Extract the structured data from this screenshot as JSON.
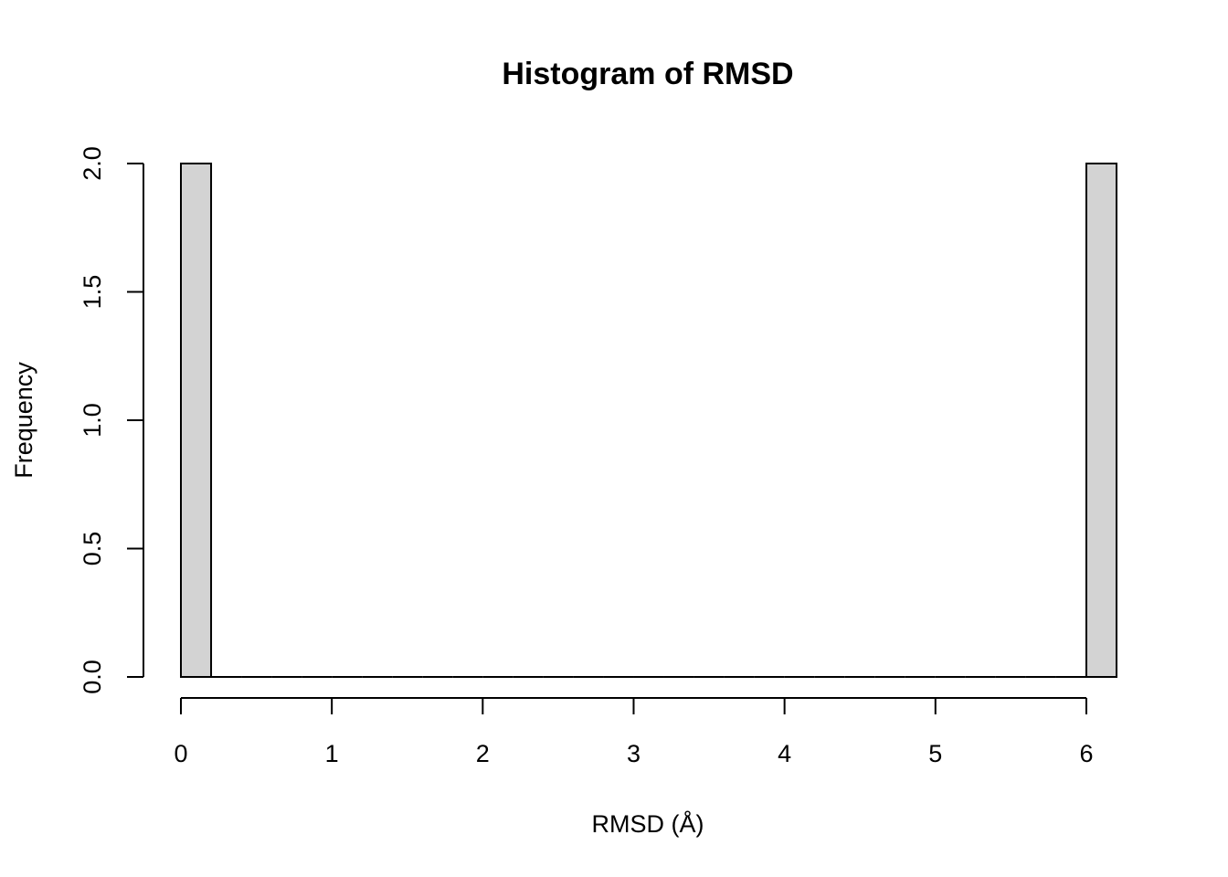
{
  "chart_data": {
    "type": "bar",
    "title": "Histogram of RMSD",
    "xlabel": "RMSD (Å)",
    "ylabel": "Frequency",
    "bins": [
      {
        "start": 0.0,
        "end": 0.2,
        "count": 2
      },
      {
        "start": 0.2,
        "end": 0.4,
        "count": 0
      },
      {
        "start": 0.4,
        "end": 0.6,
        "count": 0
      },
      {
        "start": 0.6,
        "end": 0.8,
        "count": 0
      },
      {
        "start": 0.8,
        "end": 1.0,
        "count": 0
      },
      {
        "start": 1.0,
        "end": 1.2,
        "count": 0
      },
      {
        "start": 1.2,
        "end": 1.4,
        "count": 0
      },
      {
        "start": 1.4,
        "end": 1.6,
        "count": 0
      },
      {
        "start": 1.6,
        "end": 1.8,
        "count": 0
      },
      {
        "start": 1.8,
        "end": 2.0,
        "count": 0
      },
      {
        "start": 2.0,
        "end": 2.2,
        "count": 0
      },
      {
        "start": 2.2,
        "end": 2.4,
        "count": 0
      },
      {
        "start": 2.4,
        "end": 2.6,
        "count": 0
      },
      {
        "start": 2.6,
        "end": 2.8,
        "count": 0
      },
      {
        "start": 2.8,
        "end": 3.0,
        "count": 0
      },
      {
        "start": 3.0,
        "end": 3.2,
        "count": 0
      },
      {
        "start": 3.2,
        "end": 3.4,
        "count": 0
      },
      {
        "start": 3.4,
        "end": 3.6,
        "count": 0
      },
      {
        "start": 3.6,
        "end": 3.8,
        "count": 0
      },
      {
        "start": 3.8,
        "end": 4.0,
        "count": 0
      },
      {
        "start": 4.0,
        "end": 4.2,
        "count": 0
      },
      {
        "start": 4.2,
        "end": 4.4,
        "count": 0
      },
      {
        "start": 4.4,
        "end": 4.6,
        "count": 0
      },
      {
        "start": 4.6,
        "end": 4.8,
        "count": 0
      },
      {
        "start": 4.8,
        "end": 5.0,
        "count": 0
      },
      {
        "start": 5.0,
        "end": 5.2,
        "count": 0
      },
      {
        "start": 5.2,
        "end": 5.4,
        "count": 0
      },
      {
        "start": 5.4,
        "end": 5.6,
        "count": 0
      },
      {
        "start": 5.6,
        "end": 5.8,
        "count": 0
      },
      {
        "start": 5.8,
        "end": 6.0,
        "count": 0
      },
      {
        "start": 6.0,
        "end": 6.2,
        "count": 2
      }
    ],
    "xlim": [
      0,
      6.2
    ],
    "ylim": [
      0,
      2
    ],
    "x_ticks": [
      0,
      1,
      2,
      3,
      4,
      5,
      6
    ],
    "x_tick_labels": [
      "0",
      "1",
      "2",
      "3",
      "4",
      "5",
      "6"
    ],
    "y_ticks": [
      0,
      0.5,
      1,
      1.5,
      2
    ],
    "y_tick_labels": [
      "0.0",
      "0.5",
      "1.0",
      "1.5",
      "2.0"
    ],
    "bar_color": "#d3d3d3",
    "border_color": "#000000",
    "grid": false
  }
}
